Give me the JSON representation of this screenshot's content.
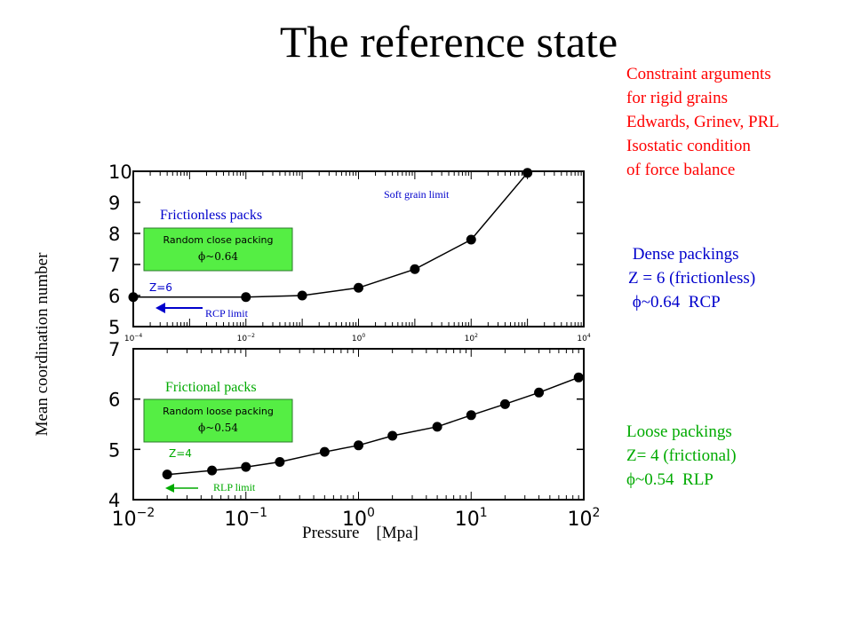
{
  "title": "The reference state",
  "constraint_lines": [
    "Constraint arguments",
    "for rigid grains",
    "Edwards, Grinev, PRL",
    "Isostatic condition",
    "of force balance"
  ],
  "dense_lines": [
    " Dense packings",
    "Z = 6 (frictionless)",
    " ϕ~0.64  RCP"
  ],
  "loose_lines": [
    "Loose packings",
    "Z= 4 (frictional)",
    "ϕ~0.54  RLP"
  ],
  "colors": {
    "red": "#ff0000",
    "blue": "#0000cc",
    "green": "#00aa00",
    "box": "#55ee44"
  },
  "chart_data": [
    {
      "type": "line",
      "title": "",
      "xlabel": "Pressure    [Mpa]",
      "ylabel": "Mean coordination number",
      "xscale": "log",
      "xlim": [
        0.0001,
        10000
      ],
      "ylim": [
        5,
        10
      ],
      "yticks": [
        5,
        6,
        7,
        8,
        9,
        10
      ],
      "xticks": [
        {
          "v": 0.0001,
          "base": "10",
          "exp": "−4"
        },
        {
          "v": 0.01,
          "base": "10",
          "exp": "−2"
        },
        {
          "v": 1,
          "base": "10",
          "exp": "0"
        },
        {
          "v": 100,
          "base": "10",
          "exp": "2"
        },
        {
          "v": 10000,
          "base": "10",
          "exp": "4"
        }
      ],
      "x": [
        0.0001,
        0.01,
        0.1,
        1,
        10,
        100,
        1000
      ],
      "y": [
        5.95,
        5.95,
        6.0,
        6.25,
        6.85,
        7.8,
        9.95
      ],
      "annotations": {
        "panel_label": "Frictionless packs",
        "box_line1": "Random close packing",
        "box_line2": "ϕ~0.64",
        "z_label": "Z=6",
        "arrow_label": "RCP limit",
        "top_note": "Soft grain limit"
      },
      "color": "#0000cc"
    },
    {
      "type": "line",
      "title": "",
      "xlabel": "Pressure    [Mpa]",
      "ylabel": "Mean coordination number",
      "xscale": "log",
      "xlim": [
        0.01,
        100
      ],
      "ylim": [
        4,
        7
      ],
      "yticks": [
        4,
        5,
        6,
        7
      ],
      "xticks": [
        {
          "v": 0.01,
          "base": "10",
          "exp": "−2"
        },
        {
          "v": 0.1,
          "base": "10",
          "exp": "−1"
        },
        {
          "v": 1,
          "base": "10",
          "exp": "0"
        },
        {
          "v": 10,
          "base": "10",
          "exp": "1"
        },
        {
          "v": 100,
          "base": "10",
          "exp": "2"
        }
      ],
      "x": [
        0.02,
        0.05,
        0.1,
        0.2,
        0.5,
        1,
        2,
        5,
        10,
        20,
        40,
        90
      ],
      "y": [
        4.5,
        4.58,
        4.65,
        4.75,
        4.95,
        5.08,
        5.27,
        5.45,
        5.68,
        5.9,
        6.13,
        6.43
      ],
      "annotations": {
        "panel_label": "Frictional packs",
        "box_line1": "Random loose packing",
        "box_line2": "ϕ~0.54",
        "z_label": "Z=4",
        "arrow_label": "RLP limit"
      },
      "color": "#00aa00"
    }
  ]
}
